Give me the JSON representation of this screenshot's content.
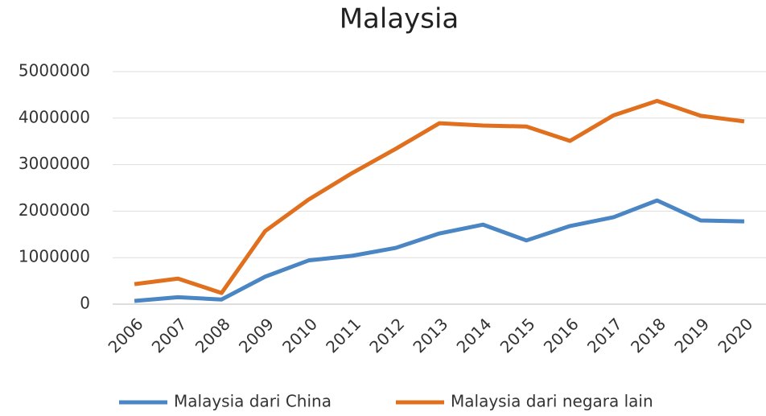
{
  "chart_data": {
    "type": "line",
    "title": "Malaysia",
    "categories": [
      "2006",
      "2007",
      "2008",
      "2009",
      "2010",
      "2011",
      "2012",
      "2013",
      "2014",
      "2015",
      "2016",
      "2017",
      "2018",
      "2019",
      "2020"
    ],
    "series": [
      {
        "name": "Malaysia dari China",
        "color": "#4a85c4",
        "values": [
          70000,
          150000,
          100000,
          590000,
          940000,
          1040000,
          1210000,
          1520000,
          1710000,
          1370000,
          1680000,
          1870000,
          2230000,
          1800000,
          1780000
        ]
      },
      {
        "name": "Malaysia dari negara lain",
        "color": "#e0701e",
        "values": [
          430000,
          550000,
          240000,
          1570000,
          2250000,
          2820000,
          3340000,
          3890000,
          3840000,
          3820000,
          3510000,
          4060000,
          4370000,
          4050000,
          3930000
        ]
      }
    ],
    "ylim": [
      0,
      5000000
    ],
    "yticks": [
      0,
      1000000,
      2000000,
      3000000,
      4000000,
      5000000
    ],
    "grid": true,
    "legend": "bottom"
  }
}
